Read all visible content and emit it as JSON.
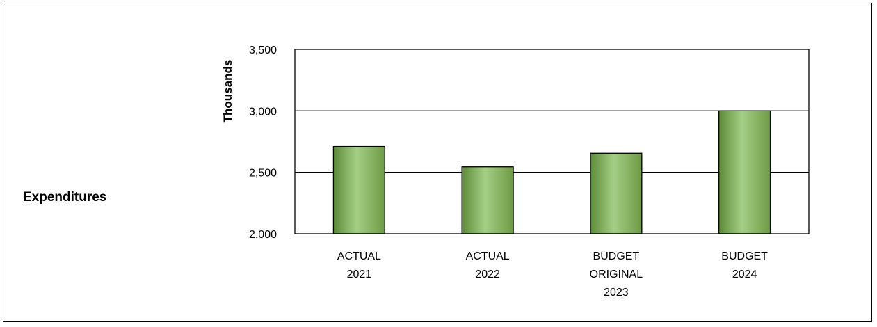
{
  "side_label": "Expenditures",
  "colors": {
    "bar_edge": "#6f9a44",
    "bar_mid": "#a4cf86",
    "bar_dark": "#5c8a36",
    "outline": "#000000"
  },
  "chart_data": {
    "type": "bar",
    "title": "",
    "xlabel": "",
    "ylabel": "Thousands",
    "ylim": [
      2000,
      3500
    ],
    "yticks": [
      2000,
      2500,
      3000,
      3500
    ],
    "ytick_labels": [
      "2,000",
      "2,500",
      "3,000",
      "3,500"
    ],
    "grid": true,
    "categories": [
      [
        "ACTUAL",
        "2021"
      ],
      [
        "ACTUAL",
        "2022"
      ],
      [
        "BUDGET",
        "ORIGINAL",
        "2023"
      ],
      [
        "BUDGET",
        "2024"
      ]
    ],
    "values": [
      2710,
      2545,
      2655,
      3000
    ]
  }
}
